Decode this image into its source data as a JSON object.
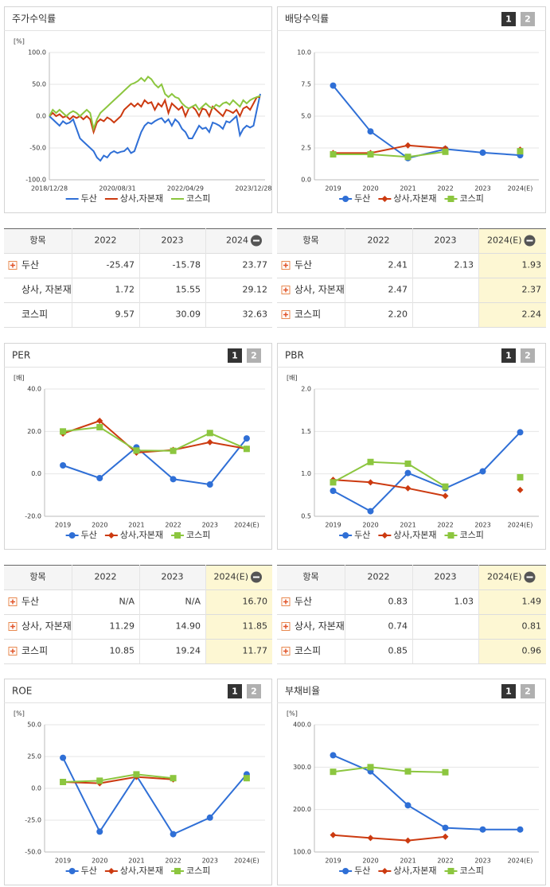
{
  "chart_data": [
    {
      "type": "line",
      "title": "주가수익률",
      "unit": "[%]",
      "markers": false,
      "categories": [
        "2018/12/28",
        null,
        null,
        null,
        null,
        null,
        null,
        null,
        null,
        null,
        null,
        null,
        null,
        null,
        null,
        null,
        null,
        null,
        null,
        null,
        "2020/08/31",
        null,
        null,
        null,
        null,
        null,
        null,
        null,
        null,
        null,
        null,
        null,
        null,
        null,
        null,
        null,
        null,
        null,
        null,
        null,
        "2022/04/29",
        null,
        null,
        null,
        null,
        null,
        null,
        null,
        null,
        null,
        null,
        null,
        null,
        null,
        null,
        null,
        null,
        null,
        null,
        null,
        "2023/12/28",
        null,
        null
      ],
      "ylim": [
        -100,
        100
      ],
      "yticks": [
        {
          "value": -100,
          "label": "-100.0"
        },
        {
          "value": -50,
          "label": "-50.0"
        },
        {
          "value": 0,
          "label": "0.0"
        },
        {
          "value": 50,
          "label": "50.0"
        },
        {
          "value": 100,
          "label": "100.0"
        }
      ],
      "series": [
        {
          "name": "두산",
          "color": "#2f6fd6",
          "values": [
            0,
            -5,
            -10,
            -15,
            -8,
            -12,
            -10,
            -5,
            -20,
            -35,
            -40,
            -45,
            -50,
            -55,
            -65,
            -70,
            -62,
            -65,
            -58,
            -55,
            -58,
            -56,
            -55,
            -50,
            -58,
            -55,
            -40,
            -25,
            -15,
            -10,
            -12,
            -8,
            -5,
            -3,
            -10,
            -5,
            -15,
            -5,
            -10,
            -20,
            -25,
            -35,
            -35,
            -25,
            -15,
            -20,
            -18,
            -25,
            -10,
            -12,
            -15,
            -20,
            -8,
            -10,
            -5,
            0,
            -30,
            -20,
            -15,
            -18,
            -15,
            10,
            35
          ]
        },
        {
          "name": "상사,자본재",
          "color": "#cc3a10",
          "values": [
            0,
            5,
            0,
            3,
            -2,
            0,
            -5,
            0,
            -3,
            0,
            -5,
            0,
            -5,
            -25,
            -10,
            -5,
            -8,
            -2,
            -5,
            -10,
            -5,
            0,
            10,
            15,
            20,
            15,
            20,
            15,
            25,
            20,
            22,
            10,
            20,
            15,
            25,
            5,
            20,
            15,
            10,
            15,
            0,
            12,
            15,
            10,
            0,
            12,
            10,
            0,
            15,
            10,
            5,
            0,
            10,
            8,
            5,
            10,
            0,
            12,
            15,
            10,
            20,
            30,
            30
          ]
        },
        {
          "name": "코스피",
          "color": "#8cc63f",
          "values": [
            0,
            10,
            5,
            10,
            5,
            0,
            5,
            8,
            5,
            0,
            5,
            10,
            5,
            -20,
            -5,
            5,
            10,
            15,
            20,
            25,
            30,
            35,
            40,
            45,
            50,
            52,
            55,
            60,
            55,
            62,
            58,
            50,
            45,
            50,
            35,
            30,
            35,
            30,
            28,
            20,
            15,
            12,
            15,
            18,
            10,
            15,
            20,
            15,
            12,
            18,
            15,
            20,
            22,
            18,
            25,
            20,
            15,
            25,
            20,
            25,
            28,
            30,
            32
          ]
        }
      ]
    },
    {
      "type": "line",
      "title": "배당수익률",
      "tabs": [
        "1",
        "2"
      ],
      "markers": true,
      "categories": [
        "2019",
        "2020",
        "2021",
        "2022",
        "2023",
        "2024(E)"
      ],
      "ylim": [
        0,
        10
      ],
      "yticks": [
        {
          "value": 0,
          "label": "0.0"
        },
        2.5,
        {
          "value": 5,
          "label": "5.0"
        },
        7.5,
        {
          "value": 10,
          "label": "10.0"
        }
      ],
      "series": [
        {
          "name": "두산",
          "color": "#2f6fd6",
          "marker": "circle",
          "values": [
            7.4,
            3.8,
            1.7,
            2.41,
            2.13,
            1.93
          ]
        },
        {
          "name": "상사,자본재",
          "color": "#cc3a10",
          "marker": "diamond",
          "values": [
            2.1,
            2.1,
            2.7,
            2.47,
            null,
            2.37
          ]
        },
        {
          "name": "코스피",
          "color": "#8cc63f",
          "marker": "square",
          "values": [
            2.0,
            2.0,
            1.8,
            2.2,
            null,
            2.24
          ]
        }
      ]
    },
    {
      "type": "line",
      "title": "PER",
      "tabs": [
        "1",
        "2"
      ],
      "unit": "[배]",
      "markers": true,
      "categories": [
        "2019",
        "2020",
        "2021",
        "2022",
        "2023",
        "2024(E)"
      ],
      "ylim": [
        -20,
        40
      ],
      "yticks": [
        {
          "value": -20,
          "label": "-20.0"
        },
        {
          "value": 0,
          "label": "0.0"
        },
        {
          "value": 20,
          "label": "20.0"
        },
        {
          "value": 40,
          "label": "40.0"
        }
      ],
      "series": [
        {
          "name": "두산",
          "color": "#2f6fd6",
          "marker": "circle",
          "values": [
            4,
            -2,
            12.5,
            -2.5,
            -5,
            16.7
          ]
        },
        {
          "name": "상사,자본재",
          "color": "#cc3a10",
          "marker": "diamond",
          "values": [
            19,
            25,
            10,
            11.29,
            14.9,
            11.85
          ]
        },
        {
          "name": "코스피",
          "color": "#8cc63f",
          "marker": "square",
          "values": [
            20,
            22,
            11,
            10.85,
            19.24,
            11.77
          ]
        }
      ]
    },
    {
      "type": "line",
      "title": "PBR",
      "tabs": [
        "1",
        "2"
      ],
      "unit": "[배]",
      "markers": true,
      "categories": [
        "2019",
        "2020",
        "2021",
        "2022",
        "2023",
        "2024(E)"
      ],
      "ylim": [
        0.5,
        2
      ],
      "yticks": [
        0.5,
        {
          "value": 1,
          "label": "1.0"
        },
        1.5,
        {
          "value": 2,
          "label": "2.0"
        }
      ],
      "series": [
        {
          "name": "두산",
          "color": "#2f6fd6",
          "marker": "circle",
          "values": [
            0.8,
            0.56,
            1.01,
            0.83,
            1.03,
            1.49
          ]
        },
        {
          "name": "상사,자본재",
          "color": "#cc3a10",
          "marker": "diamond",
          "values": [
            0.93,
            0.9,
            0.83,
            0.74,
            null,
            0.81
          ]
        },
        {
          "name": "코스피",
          "color": "#8cc63f",
          "marker": "square",
          "values": [
            0.9,
            1.14,
            1.12,
            0.85,
            null,
            0.96
          ]
        }
      ]
    },
    {
      "type": "line",
      "title": "ROE",
      "tabs": [
        "1",
        "2"
      ],
      "unit": "[%]",
      "markers": true,
      "categories": [
        "2019",
        "2020",
        "2021",
        "2022",
        "2023",
        "2024(E)"
      ],
      "ylim": [
        -50,
        50
      ],
      "yticks": [
        {
          "value": -50,
          "label": "-50.0"
        },
        {
          "value": -25,
          "label": "-25.0"
        },
        {
          "value": 0,
          "label": "0.0"
        },
        {
          "value": 25,
          "label": "25.0"
        },
        {
          "value": 50,
          "label": "50.0"
        }
      ],
      "series": [
        {
          "name": "두산",
          "color": "#2f6fd6",
          "marker": "circle",
          "values": [
            24,
            -34,
            10,
            -36,
            -23,
            11
          ]
        },
        {
          "name": "상사,자본재",
          "color": "#cc3a10",
          "marker": "diamond",
          "values": [
            5,
            4,
            9,
            7,
            null,
            8
          ]
        },
        {
          "name": "코스피",
          "color": "#8cc63f",
          "marker": "square",
          "values": [
            5,
            6,
            11,
            8,
            null,
            8
          ]
        }
      ]
    },
    {
      "type": "line",
      "title": "부채비율",
      "tabs": [
        "1",
        "2"
      ],
      "unit": "[%]",
      "markers": true,
      "categories": [
        "2019",
        "2020",
        "2021",
        "2022",
        "2023",
        "2024(E)"
      ],
      "ylim": [
        100,
        400
      ],
      "yticks": [
        {
          "value": 100,
          "label": "100.0"
        },
        {
          "value": 200,
          "label": "200.0"
        },
        {
          "value": 300,
          "label": "300.0"
        },
        {
          "value": 400,
          "label": "400.0"
        }
      ],
      "series": [
        {
          "name": "두산",
          "color": "#2f6fd6",
          "marker": "circle",
          "values": [
            328,
            290,
            210,
            157,
            153,
            153
          ]
        },
        {
          "name": "상사,자본재",
          "color": "#cc3a10",
          "marker": "diamond",
          "values": [
            140,
            133,
            127,
            136,
            null,
            null
          ]
        },
        {
          "name": "코스피",
          "color": "#8cc63f",
          "marker": "square",
          "values": [
            289,
            300,
            290,
            288,
            null,
            null
          ]
        }
      ]
    }
  ],
  "tables": [
    {
      "header": [
        "항목",
        "2022",
        "2023",
        "2024"
      ],
      "highlight": false,
      "rows": [
        {
          "label": "두산",
          "expand": true,
          "values": [
            "-25.47",
            "-15.78",
            "23.77"
          ]
        },
        {
          "label": "상사, 자본재",
          "expand": false,
          "values": [
            "1.72",
            "15.55",
            "29.12"
          ]
        },
        {
          "label": "코스피",
          "expand": false,
          "values": [
            "9.57",
            "30.09",
            "32.63"
          ]
        }
      ]
    },
    {
      "header": [
        "항목",
        "2022",
        "2023",
        "2024(E)"
      ],
      "highlight": true,
      "rows": [
        {
          "label": "두산",
          "expand": true,
          "values": [
            "2.41",
            "2.13",
            "1.93"
          ]
        },
        {
          "label": "상사, 자본재",
          "expand": true,
          "values": [
            "2.47",
            null,
            "2.37"
          ]
        },
        {
          "label": "코스피",
          "expand": true,
          "values": [
            "2.20",
            null,
            "2.24"
          ]
        }
      ]
    },
    {
      "header": [
        "항목",
        "2022",
        "2023",
        "2024(E)"
      ],
      "highlight": true,
      "rows": [
        {
          "label": "두산",
          "expand": true,
          "values": [
            "N/A",
            "N/A",
            "16.70"
          ]
        },
        {
          "label": "상사, 자본재",
          "expand": true,
          "values": [
            "11.29",
            "14.90",
            "11.85"
          ]
        },
        {
          "label": "코스피",
          "expand": true,
          "values": [
            "10.85",
            "19.24",
            "11.77"
          ]
        }
      ]
    },
    {
      "header": [
        "항목",
        "2022",
        "2023",
        "2024(E)"
      ],
      "highlight": true,
      "rows": [
        {
          "label": "두산",
          "expand": true,
          "values": [
            "0.83",
            "1.03",
            "1.49"
          ]
        },
        {
          "label": "상사, 자본재",
          "expand": true,
          "values": [
            "0.74",
            null,
            "0.81"
          ]
        },
        {
          "label": "코스피",
          "expand": true,
          "values": [
            "0.85",
            null,
            "0.96"
          ]
        }
      ]
    }
  ]
}
